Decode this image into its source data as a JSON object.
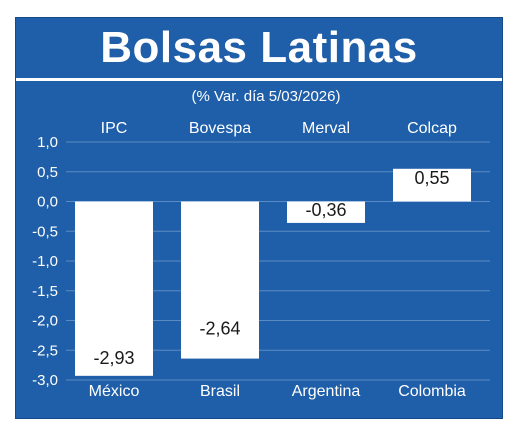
{
  "chart_data": {
    "type": "bar",
    "title": "Bolsas Latinas",
    "subtitle": "(% Var. día 5/03/2026)",
    "index_names": [
      "IPC",
      "Bovespa",
      "Merval",
      "Colcap"
    ],
    "categories": [
      "México",
      "Brasil",
      "Argentina",
      "Colombia"
    ],
    "values": [
      -2.93,
      -2.64,
      -0.36,
      0.55
    ],
    "value_labels": [
      "-2,93",
      "-2,64",
      "-0,36",
      "0,55"
    ],
    "ylim": [
      -3.0,
      1.0
    ],
    "yticks": [
      1.0,
      0.5,
      0.0,
      -0.5,
      -1.0,
      -1.5,
      -2.0,
      -2.5,
      -3.0
    ],
    "ytick_labels": [
      "1,0",
      "0,5",
      "0,0",
      "-0,5",
      "-1,0",
      "-1,5",
      "-2,0",
      "-2,5",
      "-3,0"
    ],
    "grid": true,
    "colors": {
      "background": "#1f5ea8",
      "bars": "#ffffff",
      "grid": "#5b8bc4",
      "text": "#ffffff",
      "value_text": "#1a1a1a"
    }
  }
}
